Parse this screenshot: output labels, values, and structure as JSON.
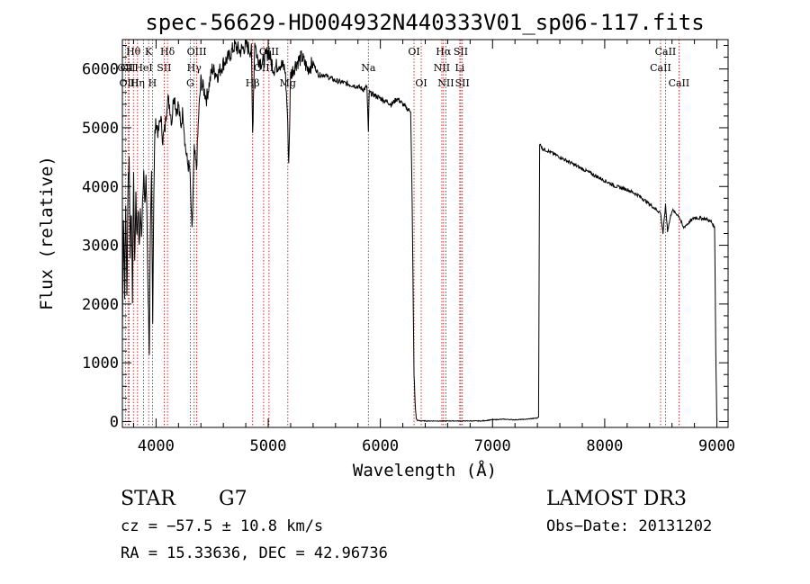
{
  "chart_data": {
    "type": "line",
    "title": "spec-56629-HD004932N440333V01_sp06-117.fits",
    "xlabel": "Wavelength (Å)",
    "ylabel": "Flux (relative)",
    "xlim": [
      3700,
      9100
    ],
    "ylim": [
      -100,
      6500
    ],
    "x_ticks": [
      4000,
      5000,
      6000,
      7000,
      8000,
      9000
    ],
    "y_ticks": [
      0,
      1000,
      2000,
      3000,
      4000,
      5000,
      6000
    ],
    "grid": false,
    "series": [
      {
        "x": [
          3700,
          3710,
          3720,
          3730,
          3740,
          3750,
          3760,
          3770,
          3780,
          3790,
          3800,
          3810,
          3820,
          3830,
          3840,
          3850,
          3860,
          3870,
          3880,
          3890,
          3900,
          3910,
          3920,
          3930,
          3940,
          3950,
          3960,
          3970,
          3980,
          3990,
          4000,
          4020,
          4040,
          4060,
          4080,
          4100,
          4120,
          4140,
          4160,
          4180,
          4200,
          4220,
          4240,
          4260,
          4280,
          4300,
          4320,
          4340,
          4360,
          4380,
          4400,
          4450,
          4500,
          4550,
          4600,
          4650,
          4700,
          4750,
          4800,
          4850,
          4861,
          4880,
          4900,
          4950,
          5000,
          5050,
          5100,
          5150,
          5170,
          5183,
          5200,
          5250,
          5300,
          5350,
          5400,
          5450,
          5500,
          5600,
          5700,
          5800,
          5850,
          5880,
          5893,
          5900,
          5950,
          6000,
          6050,
          6100,
          6150,
          6200,
          6250,
          6270,
          6280,
          6290,
          6300,
          6310,
          6320,
          6330,
          6350,
          6400,
          6500,
          6600,
          6700,
          6800,
          6900,
          7000,
          7100,
          7200,
          7300,
          7400,
          7410,
          7420,
          7430,
          7440,
          7500,
          7600,
          7700,
          7800,
          7900,
          8000,
          8100,
          8200,
          8300,
          8400,
          8498,
          8520,
          8542,
          8560,
          8600,
          8662,
          8700,
          8800,
          8900,
          8950,
          8980,
          8990,
          9000
        ],
        "y": [
          1500,
          3500,
          2200,
          3700,
          2100,
          4000,
          4500,
          2900,
          3600,
          2100,
          4200,
          2600,
          3900,
          3100,
          3700,
          2900,
          3600,
          3100,
          3800,
          4300,
          3600,
          4200,
          3400,
          2100,
          1200,
          3200,
          4200,
          1800,
          3900,
          4900,
          5100,
          4900,
          5200,
          4800,
          5000,
          5500,
          5400,
          5100,
          5600,
          5300,
          5400,
          5000,
          5300,
          4700,
          4400,
          4300,
          3200,
          4600,
          4300,
          5200,
          5800,
          5500,
          6000,
          5900,
          6100,
          6200,
          6400,
          6300,
          6400,
          6300,
          4900,
          6500,
          6200,
          6100,
          6300,
          6000,
          6100,
          6000,
          5300,
          4400,
          5900,
          6100,
          6200,
          6000,
          6100,
          5900,
          5900,
          5800,
          5750,
          5700,
          5650,
          5700,
          4900,
          5600,
          5550,
          5500,
          5450,
          5400,
          5500,
          5400,
          5300,
          5300,
          4200,
          2500,
          800,
          300,
          50,
          20,
          15,
          10,
          10,
          10,
          10,
          10,
          10,
          30,
          40,
          30,
          40,
          60,
          80,
          4700,
          4720,
          4650,
          4600,
          4500,
          4400,
          4300,
          4200,
          4100,
          4000,
          3950,
          3850,
          3700,
          3550,
          3200,
          3680,
          3250,
          3600,
          3500,
          3300,
          3470,
          3450,
          3400,
          3300,
          1200,
          0
        ]
      }
    ],
    "line_labels": [
      {
        "text": "Hθ",
        "x": 3798,
        "row": 0
      },
      {
        "text": "OII",
        "x": 3727,
        "row": 1
      },
      {
        "text": "CII",
        "x": 3750,
        "row": 1
      },
      {
        "text": "OIII",
        "x": 3760,
        "row": 2
      },
      {
        "text": "Hη",
        "x": 3835,
        "row": 2
      },
      {
        "text": "K",
        "x": 3934,
        "row": 0
      },
      {
        "text": "HeI",
        "x": 3889,
        "row": 1
      },
      {
        "text": "H",
        "x": 3968,
        "row": 2
      },
      {
        "text": "Hδ",
        "x": 4102,
        "row": 0
      },
      {
        "text": "SII",
        "x": 4072,
        "row": 1
      },
      {
        "text": "OIII",
        "x": 4363,
        "row": 0
      },
      {
        "text": "Hγ",
        "x": 4340,
        "row": 1
      },
      {
        "text": "G",
        "x": 4305,
        "row": 2
      },
      {
        "text": "OIII",
        "x": 5007,
        "row": 0
      },
      {
        "text": "OIII",
        "x": 4959,
        "row": 1
      },
      {
        "text": "Hβ",
        "x": 4861,
        "row": 2
      },
      {
        "text": "Mg",
        "x": 5175,
        "row": 2
      },
      {
        "text": "Na",
        "x": 5893,
        "row": 1
      },
      {
        "text": "OI",
        "x": 6300,
        "row": 0
      },
      {
        "text": "OI",
        "x": 6364,
        "row": 2
      },
      {
        "text": "Hα",
        "x": 6563,
        "row": 0
      },
      {
        "text": "SII",
        "x": 6717,
        "row": 0
      },
      {
        "text": "NII",
        "x": 6548,
        "row": 1
      },
      {
        "text": "Li",
        "x": 6708,
        "row": 1
      },
      {
        "text": "NII",
        "x": 6584,
        "row": 2
      },
      {
        "text": "SII",
        "x": 6731,
        "row": 2
      },
      {
        "text": "CaII",
        "x": 8542,
        "row": 0
      },
      {
        "text": "CaII",
        "x": 8498,
        "row": 1
      },
      {
        "text": "CaII",
        "x": 8662,
        "row": 2
      }
    ]
  },
  "info": {
    "class": "STAR",
    "subclass": "G7",
    "survey": "LAMOST DR3",
    "cz": "cz = −57.5 ± 10.8 km/s",
    "obs_date": "Obs−Date: 20131202",
    "radec": "RA =  15.33636, DEC =  42.96736"
  }
}
